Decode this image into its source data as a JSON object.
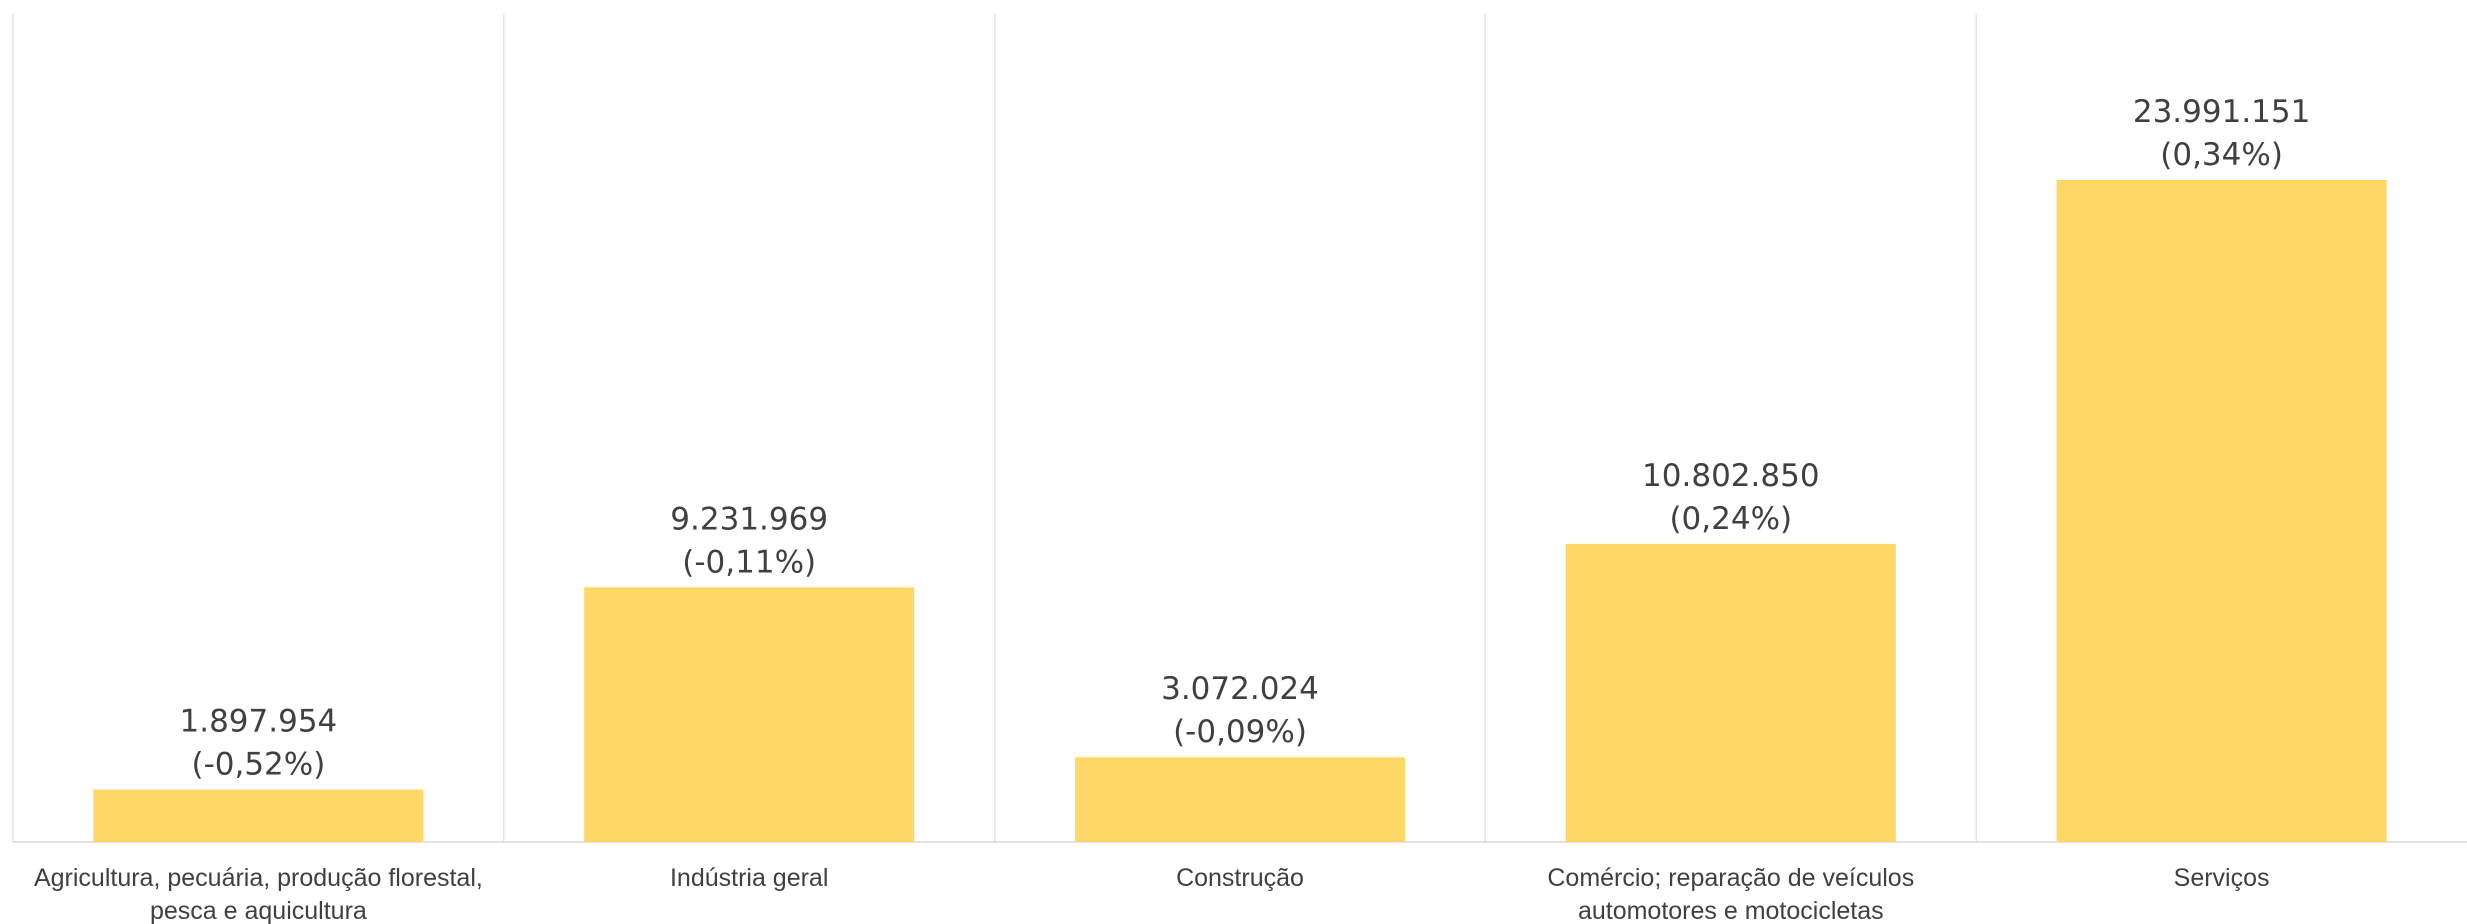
{
  "chart_data": {
    "type": "bar",
    "categories": [
      [
        "Agricultura, pecuária, produção florestal,",
        "pesca e aquicultura"
      ],
      [
        "Indústria geral"
      ],
      [
        "Construção"
      ],
      [
        "Comércio; reparação de veículos",
        "automotores e motocicletas"
      ],
      [
        "Serviços"
      ]
    ],
    "values": [
      1897954,
      9231969,
      3072024,
      10802850,
      23991151
    ],
    "value_labels": [
      "1.897.954",
      "9.231.969",
      "3.072.024",
      "10.802.850",
      "23.991.151"
    ],
    "change_labels": [
      "(-0,52%)",
      "(-0,11%)",
      "(-0,09%)",
      "(0,24%)",
      "(0,34%)"
    ],
    "ylim": [
      0,
      30000000
    ],
    "grid": "vertical separators",
    "bar_color": "#FDD866",
    "title": "",
    "xlabel": "",
    "ylabel": ""
  }
}
